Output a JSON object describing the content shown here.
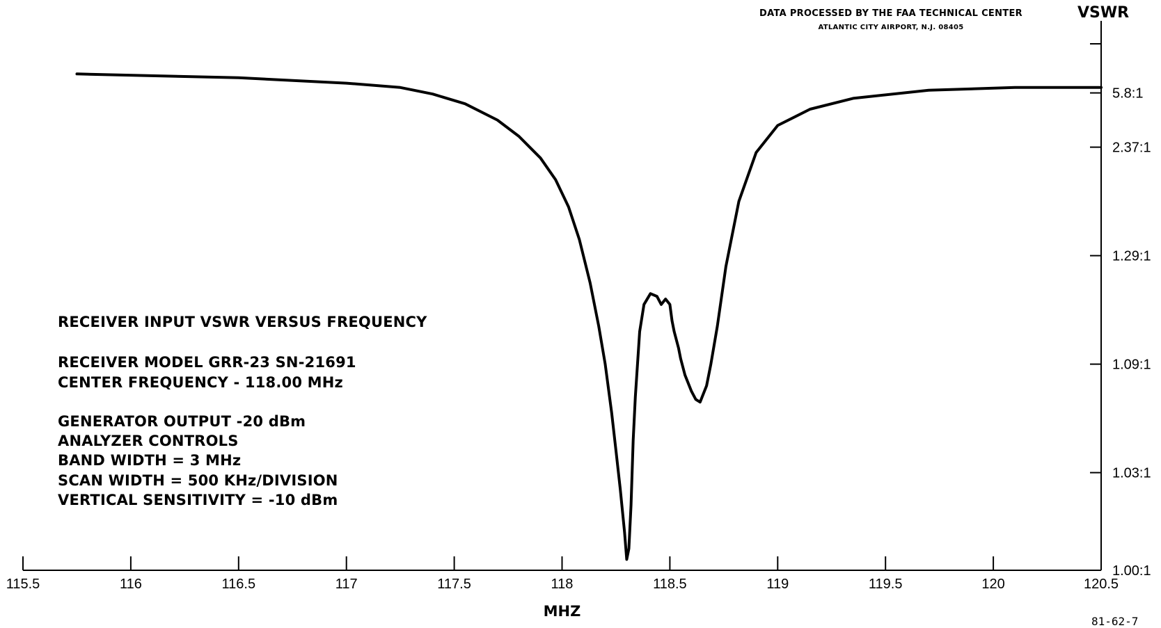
{
  "header": {
    "line1": "DATA PROCESSED BY THE FAA TECHNICAL CENTER",
    "line2": "ATLANTIC CITY AIRPORT, N.J. 08405"
  },
  "info_block": {
    "title": "RECEIVER INPUT VSWR VERSUS FREQUENCY",
    "model": "RECEIVER MODEL GRR-23 SN-21691",
    "center_freq": "CENTER FREQUENCY - 118.00 MHz",
    "generator": "GENERATOR OUTPUT -20 dBm",
    "analyzer": "ANALYZER CONTROLS",
    "bandwidth": "BAND WIDTH = 3 MHz",
    "scan_width": "SCAN WIDTH = 500 KHz/DIVISION",
    "sensitivity": "VERTICAL SENSITIVITY = -10 dBm"
  },
  "figure_code": "81-62-7",
  "chart_data": {
    "type": "line",
    "xlabel": "MHZ",
    "ylabel": "VSWR",
    "x_ticks": [
      "115.5",
      "116",
      "116.5",
      "117",
      "117.5",
      "118",
      "118.5",
      "119",
      "119.5",
      "120",
      "120.5"
    ],
    "x_tick_values": [
      115.5,
      116,
      116.5,
      117,
      117.5,
      118,
      118.5,
      119,
      119.5,
      120,
      120.5
    ],
    "xlim": [
      115.5,
      120.5
    ],
    "y_ticks": [
      "5.8:1",
      "2.37:1",
      "1.29:1",
      "1.09:1",
      "1.03:1",
      "1.00:1"
    ],
    "y_tick_levels": [
      0.88,
      0.78,
      0.58,
      0.38,
      0.18,
      0.0
    ],
    "ylim": [
      0,
      1
    ],
    "series": [
      {
        "x": [
          115.75,
          116.5,
          117.0,
          117.25,
          117.4,
          117.55,
          117.7,
          117.8,
          117.9,
          117.97,
          118.03,
          118.08,
          118.13,
          118.17,
          118.2,
          118.23,
          118.25,
          118.27,
          118.29,
          118.3,
          118.31,
          118.32,
          118.33,
          118.34,
          118.36,
          118.38,
          118.41,
          118.44,
          118.46,
          118.48,
          118.5,
          118.51,
          118.52,
          118.54,
          118.55,
          118.57,
          118.6,
          118.62,
          118.64,
          118.65,
          118.67,
          118.69,
          118.72,
          118.76,
          118.82,
          118.9,
          119.0,
          119.15,
          119.35,
          119.7,
          120.1,
          120.5
        ],
        "y": [
          0.915,
          0.908,
          0.898,
          0.89,
          0.878,
          0.86,
          0.83,
          0.8,
          0.76,
          0.72,
          0.67,
          0.61,
          0.53,
          0.45,
          0.38,
          0.29,
          0.22,
          0.15,
          0.07,
          0.02,
          0.04,
          0.12,
          0.24,
          0.32,
          0.44,
          0.49,
          0.51,
          0.505,
          0.49,
          0.5,
          0.49,
          0.46,
          0.44,
          0.41,
          0.39,
          0.36,
          0.33,
          0.315,
          0.31,
          0.32,
          0.34,
          0.38,
          0.45,
          0.56,
          0.68,
          0.77,
          0.82,
          0.85,
          0.87,
          0.885,
          0.89,
          0.89
        ]
      }
    ],
    "grid": false,
    "legend": "none"
  }
}
